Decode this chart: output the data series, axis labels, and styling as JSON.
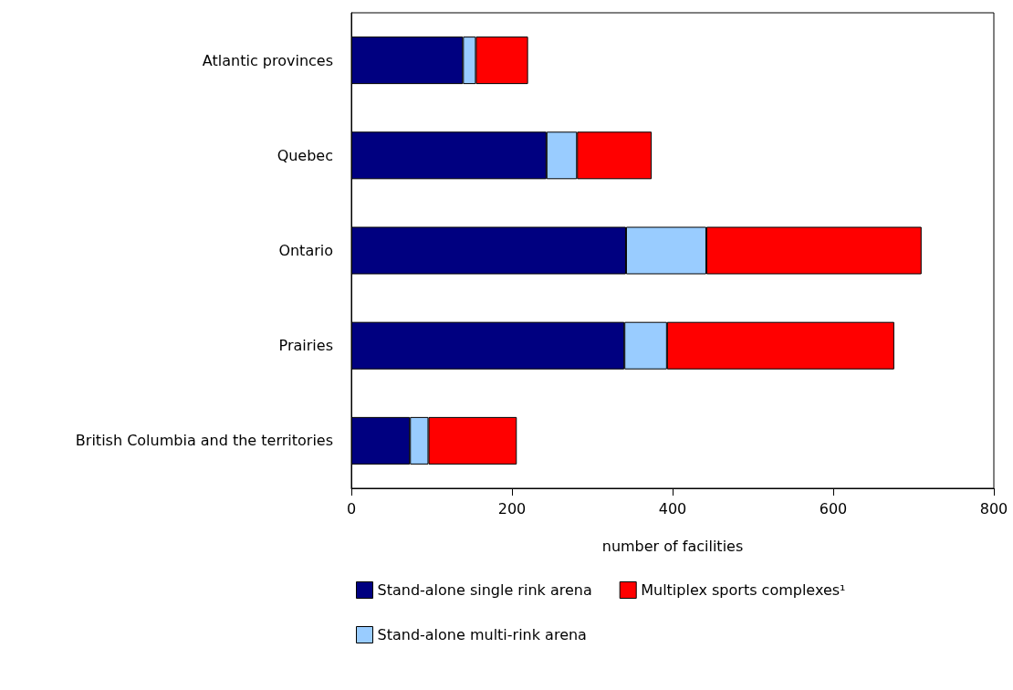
{
  "chart_data": {
    "type": "bar",
    "orientation": "horizontal",
    "stacked": true,
    "xlabel": "number of facilities",
    "categories": [
      "Atlantic provinces",
      "Quebec",
      "Ontario",
      "Prairies",
      "British Columbia and the territories"
    ],
    "series": [
      {
        "name": "Stand-alone single rink arena",
        "color": "#000080",
        "values": [
          139,
          243,
          342,
          340,
          73
        ]
      },
      {
        "name": "Stand-alone multi-rink arena",
        "color": "#99ccff",
        "values": [
          16,
          38,
          100,
          53,
          23
        ]
      },
      {
        "name": "Multiplex sports complexes¹",
        "color": "#ff0000",
        "values": [
          65,
          93,
          268,
          283,
          110
        ]
      }
    ],
    "xlim": [
      0,
      800
    ],
    "xticks": [
      0,
      200,
      400,
      600,
      800
    ],
    "grid": false,
    "legend": "bottom"
  }
}
